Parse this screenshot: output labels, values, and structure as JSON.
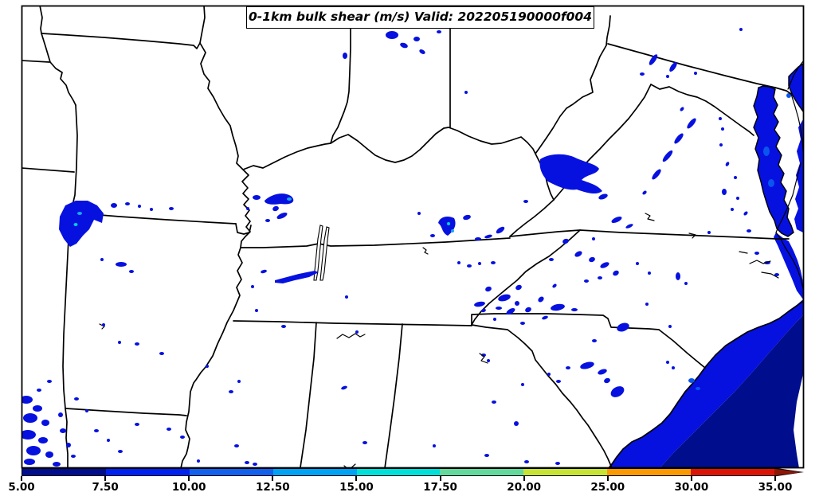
{
  "title": "0-1km bulk shear (m/s) Valid: 202205190000f004",
  "colorbar": {
    "ticks": [
      "5.00",
      "7.50",
      "10.00",
      "12.50",
      "15.00",
      "17.50",
      "20.00",
      "25.00",
      "30.00",
      "35.00"
    ],
    "segments": [
      {
        "from": 5.0,
        "to": 7.5,
        "color": "#000d8d"
      },
      {
        "from": 7.5,
        "to": 10.0,
        "color": "#0022f1"
      },
      {
        "from": 10.0,
        "to": 12.5,
        "color": "#1260ec"
      },
      {
        "from": 12.5,
        "to": 15.0,
        "color": "#00a2f3"
      },
      {
        "from": 15.0,
        "to": 17.5,
        "color": "#00e0d8"
      },
      {
        "from": 17.5,
        "to": 20.0,
        "color": "#63da9c"
      },
      {
        "from": 20.0,
        "to": 25.0,
        "color": "#c6e336"
      },
      {
        "from": 25.0,
        "to": 30.0,
        "color": "#fb9902"
      },
      {
        "from": 30.0,
        "to": 35.0,
        "color": "#dc1405"
      }
    ],
    "extend_color": "#8e1604",
    "units": "m/s"
  },
  "palette": {
    "shear_blue": "#0611e0",
    "ocean_navy": "#000d8d",
    "medium_blue": "#0a55ee",
    "light_blue_spot": "#18aaf0",
    "cyan_spot": "#00d0e0",
    "border_black": "#000000",
    "background": "#ffffff"
  }
}
